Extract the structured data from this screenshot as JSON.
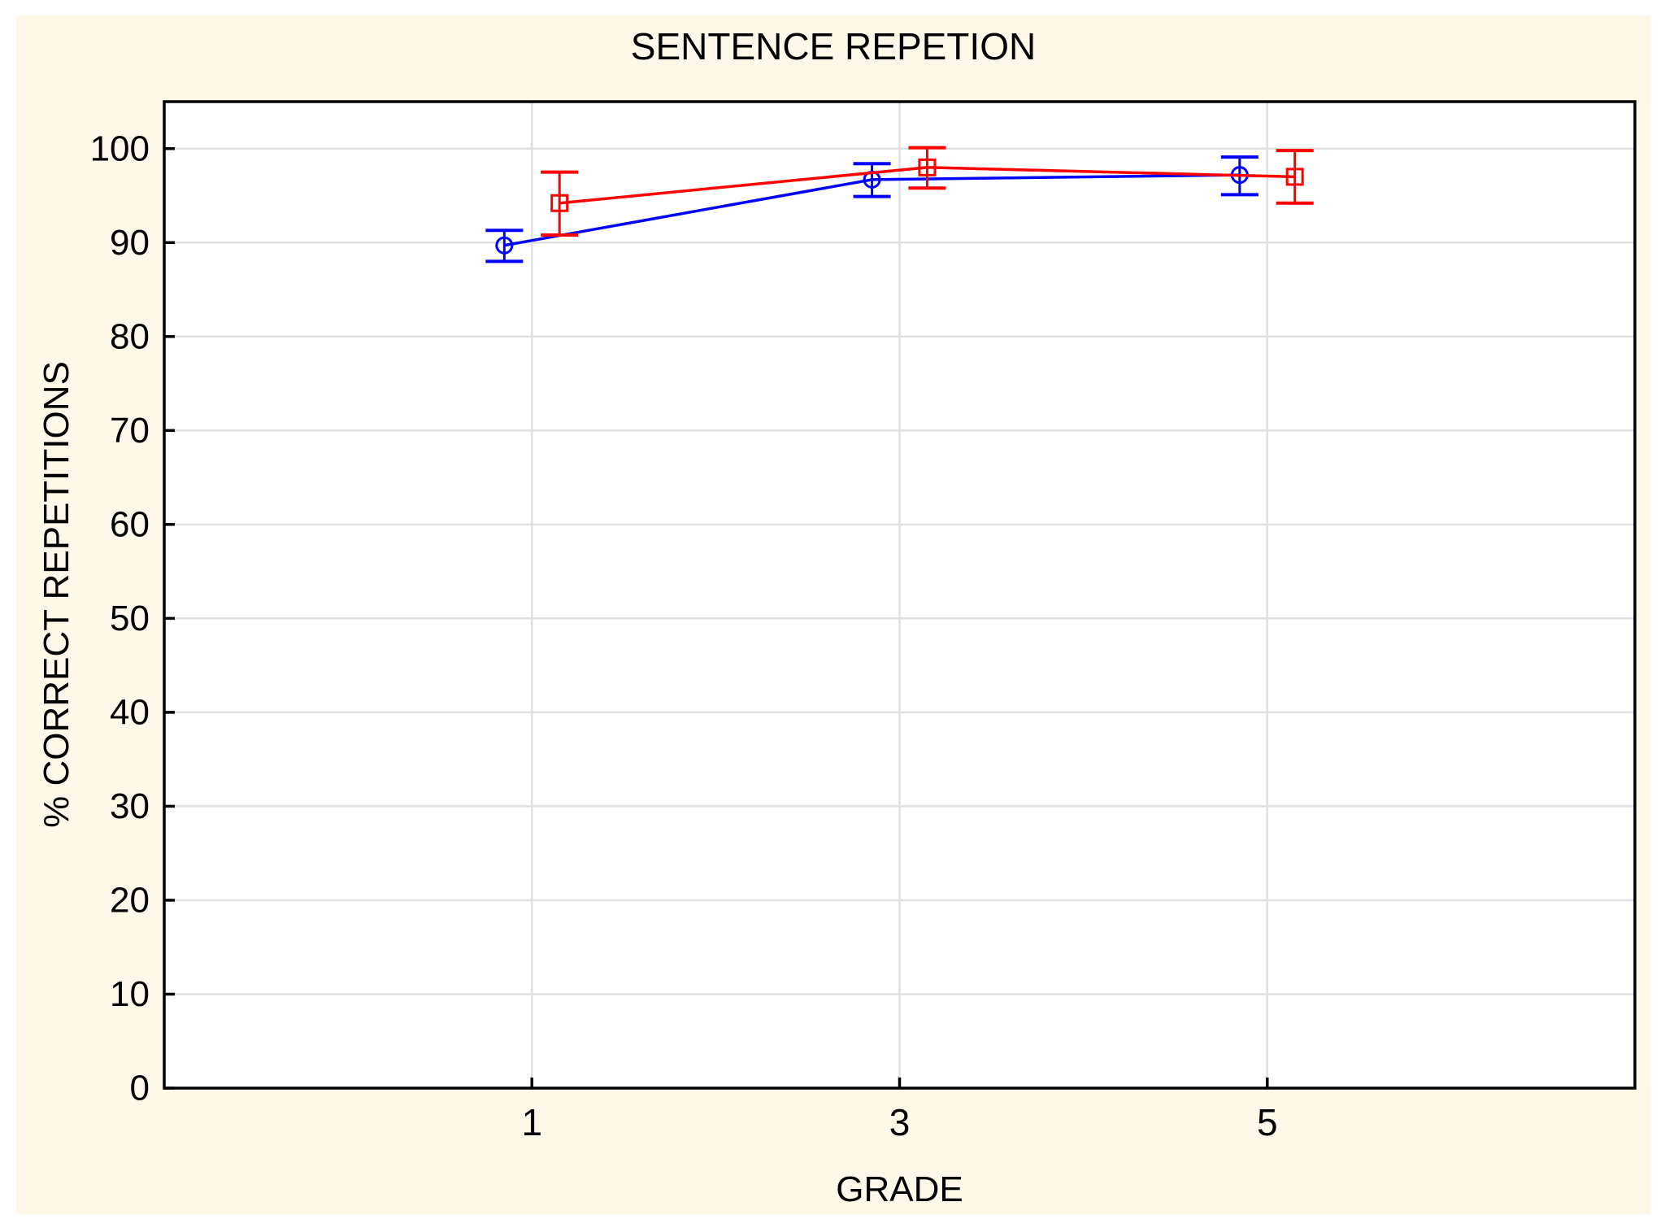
{
  "page": {
    "background": "#FFFFFF",
    "canvas_background": "#FDF8E7"
  },
  "chart_data": {
    "type": "line",
    "title": "SENTENCE REPETION",
    "xlabel": "GRADE",
    "ylabel": "% CORRECT REPETITIONS",
    "x": [
      1,
      3,
      5
    ],
    "xticks": [
      1,
      3,
      5
    ],
    "yticks": [
      0,
      10,
      20,
      30,
      40,
      50,
      60,
      70,
      80,
      90,
      100
    ],
    "xlim": [
      -1,
      7
    ],
    "ylim": [
      0,
      105
    ],
    "grid": "on",
    "grid_color": "#E0E0E0",
    "axis_color": "#000000",
    "plot_background": "#FFFFFF",
    "legend": "none",
    "error_bars": "yes",
    "series": [
      {
        "name": "blue-circle-series",
        "marker": "circle",
        "color": "#0000FF",
        "x_offset": -0.15,
        "values": [
          89.7,
          96.7,
          97.2
        ],
        "err_low": [
          88.0,
          94.9,
          95.1
        ],
        "err_high": [
          91.3,
          98.4,
          99.1
        ]
      },
      {
        "name": "red-square-series",
        "marker": "square",
        "color": "#FF0000",
        "x_offset": 0.15,
        "values": [
          94.2,
          98.0,
          97.0
        ],
        "err_low": [
          90.8,
          95.8,
          94.2
        ],
        "err_high": [
          97.5,
          100.1,
          99.8
        ]
      }
    ]
  }
}
